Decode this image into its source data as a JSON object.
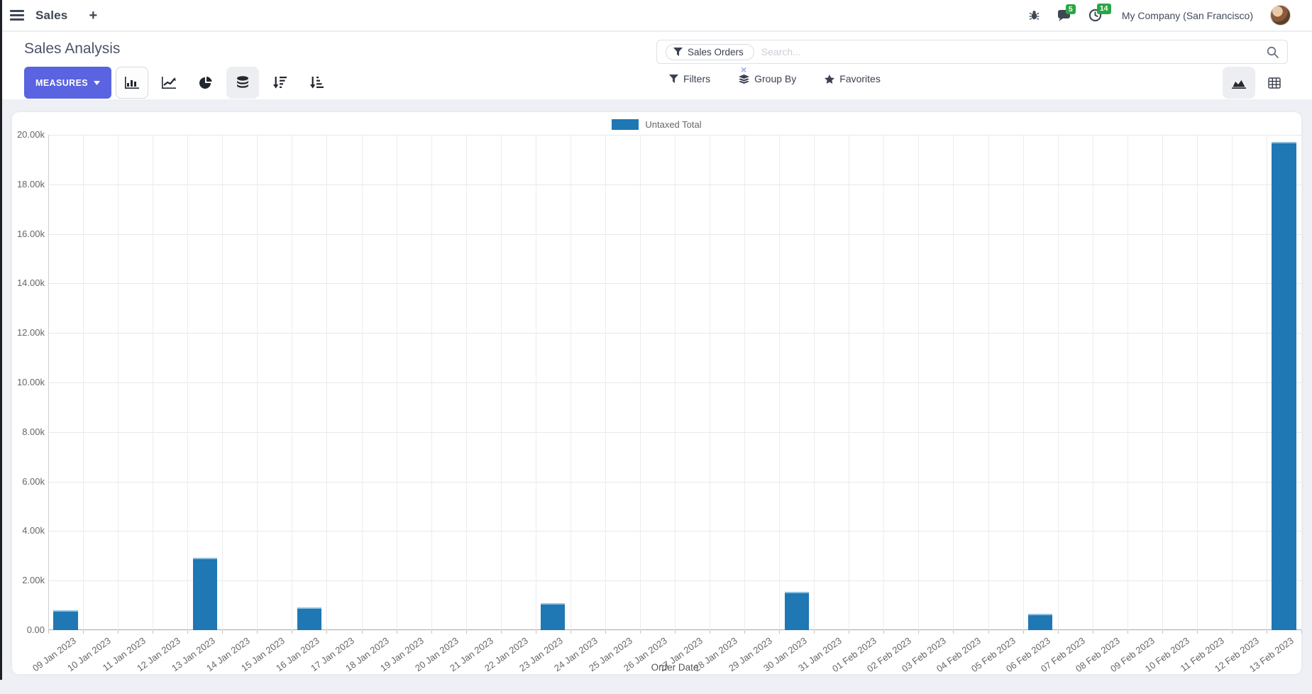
{
  "navbar": {
    "app_name": "Sales",
    "plus_glyph": "+",
    "messages_badge": "5",
    "activities_badge": "14",
    "company": "My Company (San Francisco)"
  },
  "control_panel": {
    "title": "Sales Analysis",
    "measures_label": "MEASURES",
    "search": {
      "facet_label": "Sales Orders",
      "facet_remove": "×",
      "placeholder": "Search..."
    },
    "filters_label": "Filters",
    "group_by_label": "Group By",
    "favorites_label": "Favorites"
  },
  "colors": {
    "bar_fill": "#1f77b4",
    "bar_border": "#8fc0df",
    "primary_button": "#5a63e0",
    "badge_green": "#28a745"
  },
  "chart_data": {
    "type": "bar",
    "title": "",
    "xlabel": "Order Date",
    "ylabel": "",
    "legend": [
      {
        "label": "Untaxed Total",
        "color": "#1f77b4"
      }
    ],
    "ylim": [
      0,
      20000
    ],
    "ytick_labels": [
      "0.00",
      "2.00k",
      "4.00k",
      "6.00k",
      "8.00k",
      "10.00k",
      "12.00k",
      "14.00k",
      "16.00k",
      "18.00k",
      "20.00k"
    ],
    "grid": true,
    "legend_position": "top-center",
    "categories": [
      "09 Jan 2023",
      "10 Jan 2023",
      "11 Jan 2023",
      "12 Jan 2023",
      "13 Jan 2023",
      "14 Jan 2023",
      "15 Jan 2023",
      "16 Jan 2023",
      "17 Jan 2023",
      "18 Jan 2023",
      "19 Jan 2023",
      "20 Jan 2023",
      "21 Jan 2023",
      "22 Jan 2023",
      "23 Jan 2023",
      "24 Jan 2023",
      "25 Jan 2023",
      "26 Jan 2023",
      "27 Jan 2023",
      "28 Jan 2023",
      "29 Jan 2023",
      "30 Jan 2023",
      "31 Jan 2023",
      "01 Feb 2023",
      "02 Feb 2023",
      "03 Feb 2023",
      "04 Feb 2023",
      "05 Feb 2023",
      "06 Feb 2023",
      "07 Feb 2023",
      "08 Feb 2023",
      "09 Feb 2023",
      "10 Feb 2023",
      "11 Feb 2023",
      "12 Feb 2023",
      "13 Feb 2023"
    ],
    "series": [
      {
        "name": "Untaxed Total",
        "values": [
          800,
          0,
          0,
          0,
          2930,
          0,
          0,
          920,
          0,
          0,
          0,
          0,
          0,
          0,
          1090,
          0,
          0,
          0,
          0,
          0,
          0,
          1550,
          0,
          0,
          0,
          0,
          0,
          0,
          650,
          0,
          0,
          0,
          0,
          0,
          0,
          19700
        ]
      }
    ]
  }
}
